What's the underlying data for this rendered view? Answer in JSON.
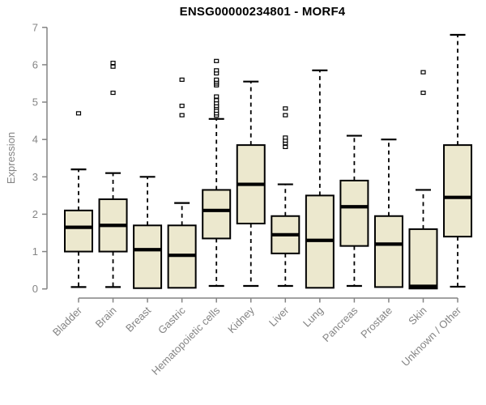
{
  "colors": {
    "background": "#ffffff",
    "box_fill": "#ece8ce",
    "box_stroke": "#000000",
    "median": "#000000",
    "whisker": "#000000",
    "outlier_fill": "#ffffff",
    "outlier_stroke": "#000000",
    "axis": "#848484",
    "tick_label": "#848484",
    "title": "#000000"
  },
  "chart_data": {
    "type": "boxplot",
    "title": "ENSG00000234801 - MORF4",
    "xlabel": "",
    "ylabel": "Expression",
    "ylim": [
      0,
      7
    ],
    "yticks": [
      0,
      1,
      2,
      3,
      4,
      5,
      6,
      7
    ],
    "grid": false,
    "legend": "none",
    "categories": [
      "Bladder",
      "Brain",
      "Breast",
      "Gastric",
      "Hematopoietic cells",
      "Kidney",
      "Liver",
      "Lung",
      "Pancreas",
      "Prostate",
      "Skin",
      "Unknown / Other"
    ],
    "boxes": [
      {
        "category": "Bladder",
        "whisker_low": 0.05,
        "q1": 1.0,
        "median": 1.65,
        "q3": 2.1,
        "whisker_high": 3.2,
        "outliers": [
          4.7
        ]
      },
      {
        "category": "Brain",
        "whisker_low": 0.05,
        "q1": 1.0,
        "median": 1.7,
        "q3": 2.4,
        "whisker_high": 3.1,
        "outliers": [
          5.25,
          5.95,
          6.05
        ]
      },
      {
        "category": "Breast",
        "whisker_low": 0.02,
        "q1": 0.02,
        "median": 1.05,
        "q3": 1.7,
        "whisker_high": 3.0,
        "outliers": []
      },
      {
        "category": "Gastric",
        "whisker_low": 0.03,
        "q1": 0.03,
        "median": 0.9,
        "q3": 1.7,
        "whisker_high": 2.3,
        "outliers": [
          4.65,
          4.9,
          5.6
        ]
      },
      {
        "category": "Hematopoietic cells",
        "whisker_low": 0.08,
        "q1": 1.35,
        "median": 2.1,
        "q3": 2.65,
        "whisker_high": 4.55,
        "outliers": [
          4.64,
          4.7,
          4.77,
          4.85,
          4.9,
          4.97,
          5.05,
          5.15,
          5.45,
          5.5,
          5.55,
          5.6,
          5.77,
          5.85,
          6.1
        ]
      },
      {
        "category": "Kidney",
        "whisker_low": 0.08,
        "q1": 1.75,
        "median": 2.8,
        "q3": 3.85,
        "whisker_high": 5.55,
        "outliers": []
      },
      {
        "category": "Liver",
        "whisker_low": 0.08,
        "q1": 0.95,
        "median": 1.45,
        "q3": 1.95,
        "whisker_high": 2.8,
        "outliers": [
          3.8,
          3.9,
          3.97,
          4.05,
          4.65,
          4.83
        ]
      },
      {
        "category": "Lung",
        "whisker_low": 0.03,
        "q1": 0.03,
        "median": 1.3,
        "q3": 2.5,
        "whisker_high": 5.85,
        "outliers": []
      },
      {
        "category": "Pancreas",
        "whisker_low": 0.08,
        "q1": 1.15,
        "median": 2.2,
        "q3": 2.9,
        "whisker_high": 4.1,
        "outliers": []
      },
      {
        "category": "Prostate",
        "whisker_low": 0.05,
        "q1": 0.05,
        "median": 1.2,
        "q3": 1.95,
        "whisker_high": 4.0,
        "outliers": []
      },
      {
        "category": "Skin",
        "whisker_low": 0.01,
        "q1": 0.01,
        "median": 0.07,
        "q3": 1.6,
        "whisker_high": 2.65,
        "outliers": [
          5.25,
          5.8
        ]
      },
      {
        "category": "Unknown / Other",
        "whisker_low": 0.06,
        "q1": 1.4,
        "median": 2.45,
        "q3": 3.85,
        "whisker_high": 6.8,
        "outliers": []
      }
    ]
  }
}
